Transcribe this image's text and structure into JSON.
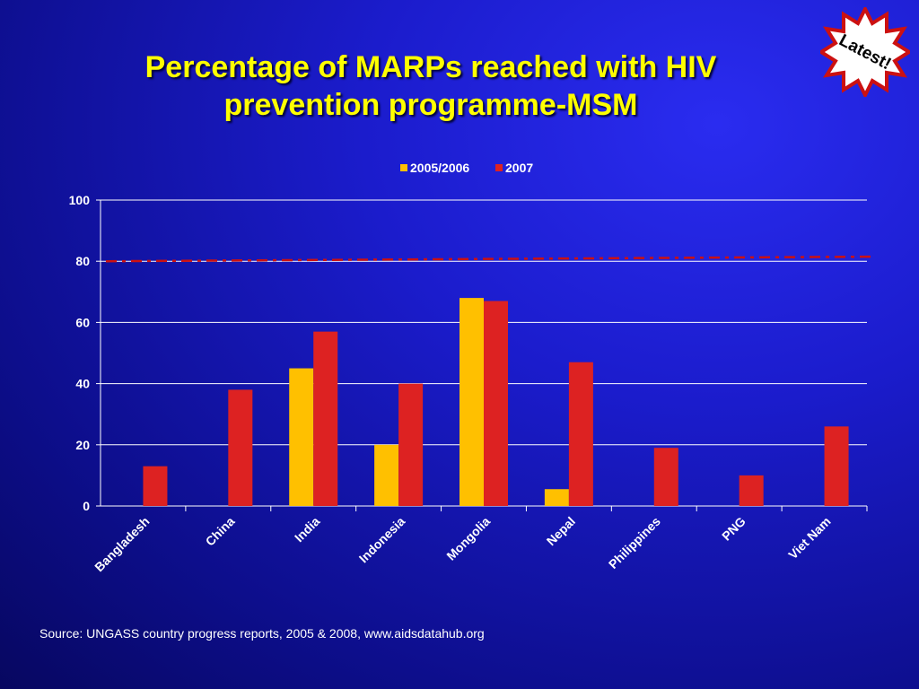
{
  "slide": {
    "title_line1": "Percentage of MARPs reached with HIV",
    "title_line2": "prevention programme-MSM",
    "source": "Source: UNGASS country progress reports, 2005 & 2008, www.aidsdatahub.org",
    "badge_text": "Latest!"
  },
  "colors": {
    "series_2005": "#ffc000",
    "series_2007": "#dd2222",
    "target_line": "#cc1111",
    "badge_fill": "#ffffff",
    "badge_border": "#cc1111"
  },
  "chart_data": {
    "type": "bar",
    "title": "",
    "xlabel": "",
    "ylabel": "",
    "categories": [
      "Bangladesh",
      "China",
      "India",
      "Indonesia",
      "Mongolia",
      "Nepal",
      "Philippines",
      "PNG",
      "Viet Nam"
    ],
    "series": [
      {
        "name": "2005/2006",
        "values": [
          null,
          null,
          45,
          20,
          68,
          5.5,
          null,
          null,
          null
        ]
      },
      {
        "name": "2007",
        "values": [
          13,
          38,
          57,
          40,
          67,
          47,
          19,
          10,
          26
        ]
      }
    ],
    "ylim": [
      0,
      100
    ],
    "yticks": [
      0,
      20,
      40,
      60,
      80,
      100
    ],
    "grid": true,
    "legend": "top",
    "reference_line": {
      "style": "dashed",
      "from": 80,
      "to": 81.5
    }
  }
}
